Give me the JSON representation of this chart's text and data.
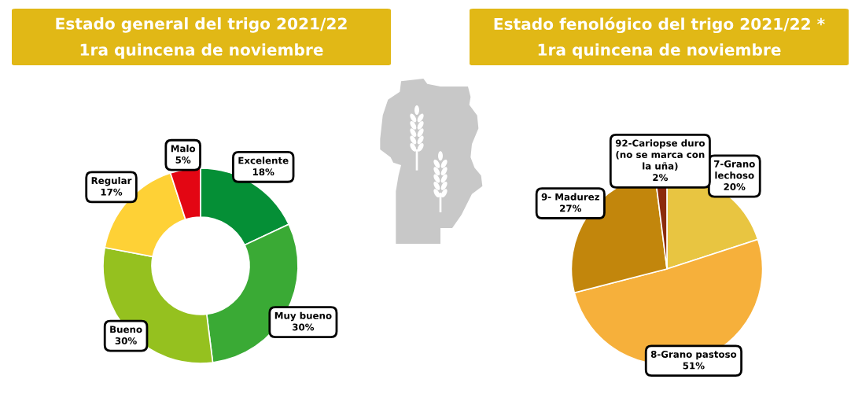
{
  "chart_data": [
    {
      "type": "donut",
      "title": "Estado general del trigo 2021/22",
      "subtitle": "1ra quincena de noviembre",
      "categories": [
        "Excelente",
        "Muy bueno",
        "Bueno",
        "Regular",
        "Malo"
      ],
      "values": [
        18,
        30,
        30,
        17,
        5
      ],
      "colors": [
        "#058f36",
        "#3aaa35",
        "#95c11f",
        "#fed136",
        "#e30613"
      ],
      "value_labels": [
        "18%",
        "30%",
        "30%",
        "17%",
        "5%"
      ]
    },
    {
      "type": "pie",
      "title": "Estado fenológico del trigo 2021/22 *",
      "subtitle": "1ra quincena de noviembre",
      "categories": [
        "7-Grano\nlechoso",
        "8-Grano pastoso",
        "9- Madurez",
        "92-Cariopse duro\n(no se marca con\nla uña)"
      ],
      "values": [
        20,
        51,
        27,
        2
      ],
      "colors": [
        "#e8c541",
        "#f6b03b",
        "#c2860c",
        "#8c2b0b"
      ],
      "value_labels": [
        "20%",
        "51%",
        "27%",
        "2%"
      ]
    }
  ]
}
